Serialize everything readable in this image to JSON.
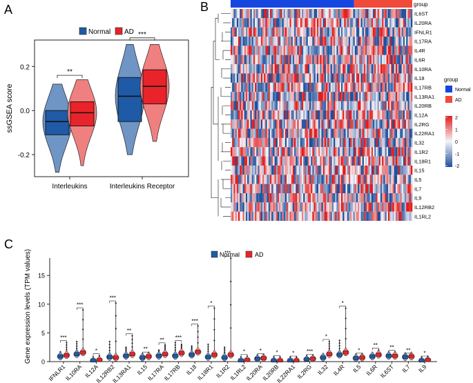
{
  "panels": {
    "A": "A",
    "B": "B",
    "C": "C"
  },
  "colors": {
    "normal": "#1f5aa6",
    "normal_light": "#6f95c4",
    "ad": "#e8242a",
    "ad_light": "#f08080",
    "heat_high": "#e21d1d",
    "heat_low": "#1f4f9a",
    "heat_mid": "#f4f4f8",
    "group_normal": "#1546e0",
    "group_ad": "#f04a3a"
  },
  "chart_data": [
    {
      "panel": "A",
      "type": "violin+box",
      "ylabel": "ssGSEA score",
      "ylim": [
        -0.3,
        0.32
      ],
      "yticks": [
        -0.2,
        0.0,
        0.2
      ],
      "ytick_labels": [
        "-0.2",
        "0.0",
        "0.2"
      ],
      "legend": {
        "title": "",
        "items": [
          "Normal",
          "AD"
        ],
        "placement": "top"
      },
      "categories": [
        "Interleukins",
        "Interleukins Receptor"
      ],
      "series": [
        {
          "name": "Normal",
          "box": [
            {
              "q1": -0.11,
              "median": -0.05,
              "q3": 0.0,
              "min": -0.28,
              "max": 0.12
            },
            {
              "q1": -0.05,
              "median": 0.065,
              "q3": 0.15,
              "min": -0.2,
              "max": 0.3
            }
          ]
        },
        {
          "name": "AD",
          "box": [
            {
              "q1": -0.07,
              "median": -0.01,
              "q3": 0.04,
              "min": -0.25,
              "max": 0.14
            },
            {
              "q1": 0.03,
              "median": 0.11,
              "q3": 0.185,
              "min": -0.14,
              "max": 0.3
            }
          ]
        }
      ],
      "significance": [
        "**",
        "***"
      ],
      "sig_y": [
        0.16,
        0.33
      ]
    },
    {
      "panel": "B",
      "type": "heatmap",
      "rows": [
        "IL6ST",
        "IL20RA",
        "IFNLR1",
        "IL17RA",
        "IL4R",
        "IL6R",
        "IL10RA",
        "IL18",
        "IL17RB",
        "IL13RA1",
        "IL20RB",
        "IL12A",
        "IL2RG",
        "IL22RA1",
        "IL32",
        "IL1R2",
        "IL18R1",
        "IL15",
        "IL5",
        "IL7",
        "IL9",
        "IL12RB2",
        "IL1RL2"
      ],
      "group_label": "group",
      "groups": [
        {
          "name": "Normal",
          "fraction": 0.68
        },
        {
          "name": "AD",
          "fraction": 0.32
        }
      ],
      "legend_title": "group",
      "legend_groups": [
        "Normal",
        "AD"
      ],
      "scale": {
        "min": -2,
        "max": 2,
        "ticks": [
          "2",
          "1",
          "0",
          "-1",
          "-2"
        ]
      }
    },
    {
      "panel": "C",
      "type": "violin+box",
      "ylabel": "Gene expression levels (TPM values)",
      "ylim": [
        0,
        18.5
      ],
      "yticks": [
        0,
        5,
        10,
        15
      ],
      "ytick_labels": [
        "0",
        "5",
        "10",
        "15"
      ],
      "legend": {
        "items": [
          "Normal",
          "AD"
        ],
        "placement": "top"
      },
      "categories": [
        "IFNLR1",
        "IL10RA",
        "IL12A",
        "IL12RB2",
        "IL13RA1",
        "IL15",
        "IL17RA",
        "IL17RB",
        "IL18",
        "IL18R1",
        "IL1R2",
        "IL1RL2",
        "IL20RA",
        "IL20RB",
        "IL22RA1",
        "IL2RG",
        "IL32",
        "IL4R",
        "IL5",
        "IL6R",
        "IL6ST",
        "IL7",
        "IL9"
      ],
      "normal_max": [
        1.7,
        3.5,
        0.6,
        3.5,
        2.5,
        1.2,
        2.0,
        3.3,
        2.7,
        3.0,
        2.5,
        0.7,
        1.0,
        0.6,
        0.5,
        0.9,
        1.3,
        3.7,
        1.0,
        1.4,
        1.5,
        1.1,
        0.5
      ],
      "ad_max": [
        3.3,
        9.0,
        1.0,
        10.2,
        4.5,
        1.3,
        2.9,
        3.0,
        6.2,
        9.3,
        18.0,
        0.9,
        1.0,
        0.7,
        0.6,
        0.9,
        3.5,
        9.3,
        1.1,
        2.0,
        1.6,
        1.1,
        0.6
      ],
      "normal_median": [
        0.9,
        1.3,
        0.2,
        0.8,
        1.0,
        0.7,
        1.0,
        1.0,
        1.2,
        0.8,
        0.7,
        0.2,
        0.5,
        0.2,
        0.2,
        0.4,
        0.7,
        1.2,
        0.6,
        0.9,
        1.0,
        0.8,
        0.2
      ],
      "ad_median": [
        1.1,
        1.6,
        0.3,
        0.7,
        1.3,
        0.9,
        1.3,
        1.5,
        1.7,
        1.2,
        1.2,
        0.3,
        0.6,
        0.2,
        0.2,
        0.5,
        1.3,
        1.6,
        0.7,
        1.2,
        1.0,
        0.9,
        0.3
      ],
      "significance": [
        "***",
        "***",
        "*",
        "***",
        "**",
        "**",
        "**",
        "***",
        "***",
        "*",
        "***",
        "*",
        "*",
        "*",
        "*",
        "***",
        "*",
        "*",
        "*",
        "**",
        "**",
        "**",
        "*"
      ]
    }
  ]
}
